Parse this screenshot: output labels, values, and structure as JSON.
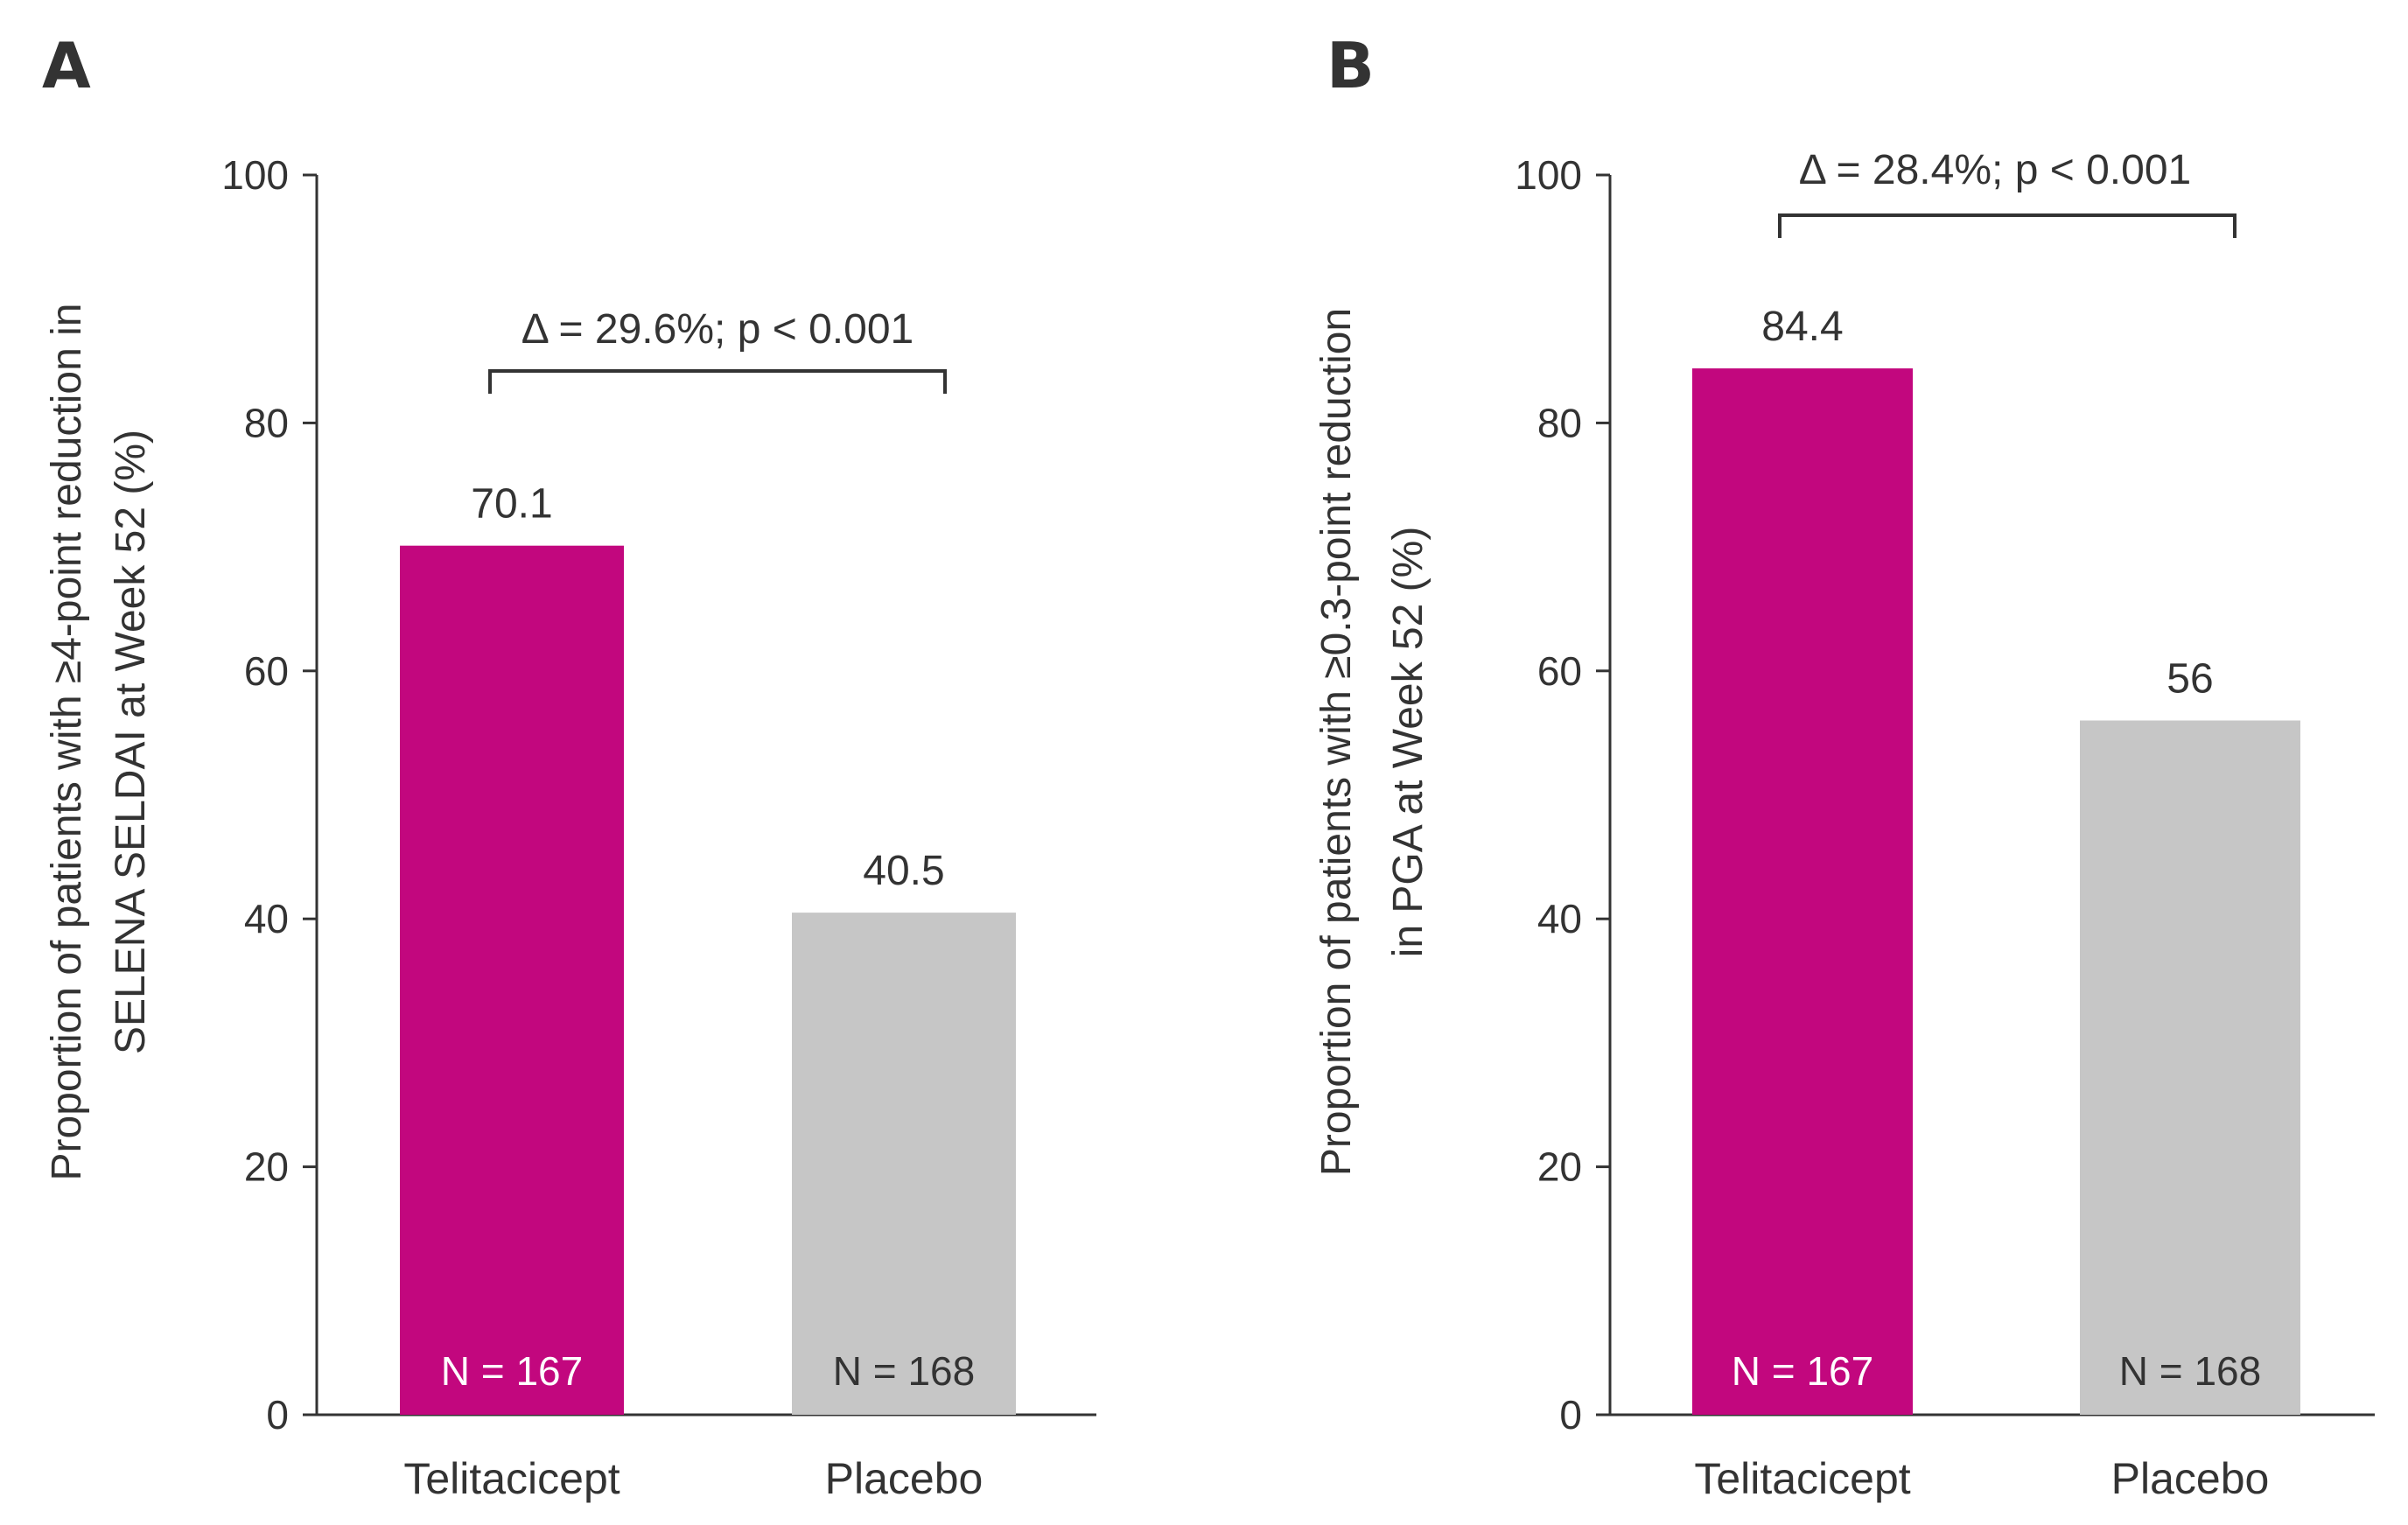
{
  "colors": {
    "telitacicept": "#C2077E",
    "placebo": "#C6C6C6",
    "text": "#333333"
  },
  "chart_data": [
    {
      "type": "bar",
      "panel": "A",
      "categories": [
        "Telitacicept",
        "Placebo"
      ],
      "values": [
        70.1,
        40.5
      ],
      "value_labels": [
        "70.1",
        "40.5"
      ],
      "n_labels": [
        "N = 167",
        "N = 168"
      ],
      "ylabel_lines": [
        "Proportion of patients with ≥4-point reduction in",
        "SELENA SELDAI at Week 52 (%)"
      ],
      "ylim": [
        0,
        100
      ],
      "yticks": [
        0,
        20,
        40,
        60,
        80,
        100
      ],
      "annotation": "Δ = 29.6%; p < 0.001",
      "grid": false
    },
    {
      "type": "bar",
      "panel": "B",
      "categories": [
        "Telitacicept",
        "Placebo"
      ],
      "values": [
        84.4,
        56
      ],
      "value_labels": [
        "84.4",
        "56"
      ],
      "n_labels": [
        "N = 167",
        "N = 168"
      ],
      "ylabel_lines": [
        "Proportion of patients with ≥0.3-point reduction",
        "in PGA at Week 52 (%)"
      ],
      "ylim": [
        0,
        100
      ],
      "yticks": [
        0,
        20,
        40,
        60,
        80,
        100
      ],
      "annotation": "Δ = 28.4%; p < 0.001",
      "grid": false
    }
  ]
}
